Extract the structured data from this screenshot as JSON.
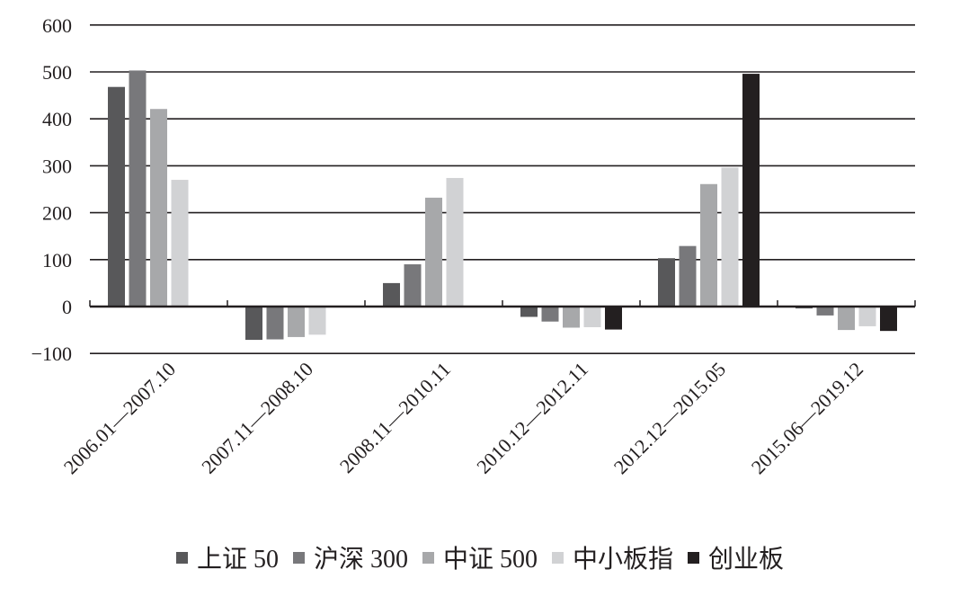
{
  "chart_data": {
    "type": "bar",
    "title": "",
    "xlabel": "",
    "ylabel": "",
    "ylim": [
      -100,
      600
    ],
    "yticks": [
      600,
      500,
      400,
      300,
      200,
      100,
      0,
      -100
    ],
    "ytick_labels": [
      "600",
      "500",
      "400",
      "300",
      "200",
      "100",
      "0",
      "−100"
    ],
    "grid": true,
    "legend_position": "bottom",
    "categories": [
      "2006.01—2007.10",
      "2007.11—2008.10",
      "2008.11—2010.11",
      "2010.12—2012.11",
      "2012.12—2015.05",
      "2015.06—2019.12"
    ],
    "series": [
      {
        "name": "上证 50",
        "color": "#58585a",
        "values": [
          468,
          -71,
          50,
          -22,
          103,
          -4
        ]
      },
      {
        "name": "沪深 300",
        "color": "#78787b",
        "values": [
          503,
          -70,
          90,
          -32,
          129,
          -19
        ]
      },
      {
        "name": "中证 500",
        "color": "#a7a8aa",
        "values": [
          421,
          -65,
          232,
          -45,
          261,
          -50
        ]
      },
      {
        "name": "中小板指",
        "color": "#d1d2d4",
        "values": [
          270,
          -60,
          274,
          -44,
          296,
          -42
        ]
      },
      {
        "name": "创业板",
        "color": "#231f20",
        "values": [
          null,
          null,
          null,
          -49,
          496,
          -52
        ]
      }
    ]
  }
}
